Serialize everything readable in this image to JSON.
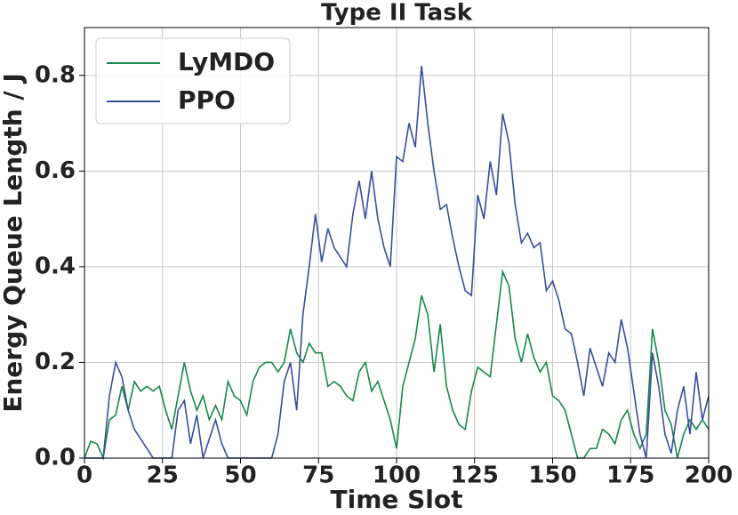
{
  "chart_data": {
    "type": "line",
    "title": "Type II Task",
    "xlabel": "Time Slot",
    "ylabel": "Energy Queue Length / J",
    "x": [
      0,
      2,
      4,
      6,
      8,
      10,
      12,
      14,
      16,
      18,
      20,
      22,
      24,
      26,
      28,
      30,
      32,
      34,
      36,
      38,
      40,
      42,
      44,
      46,
      48,
      50,
      52,
      54,
      56,
      58,
      60,
      62,
      64,
      66,
      68,
      70,
      72,
      74,
      76,
      78,
      80,
      82,
      84,
      86,
      88,
      90,
      92,
      94,
      96,
      98,
      100,
      102,
      104,
      106,
      108,
      110,
      112,
      114,
      116,
      118,
      120,
      122,
      124,
      126,
      128,
      130,
      132,
      134,
      136,
      138,
      140,
      142,
      144,
      146,
      148,
      150,
      152,
      154,
      156,
      158,
      160,
      162,
      164,
      166,
      168,
      170,
      172,
      174,
      176,
      178,
      180,
      182,
      184,
      186,
      188,
      190,
      192,
      194,
      196,
      198,
      200
    ],
    "series": [
      {
        "name": "LyMDO",
        "color": "#16884a",
        "values": [
          0,
          0.035,
          0.03,
          0,
          0.08,
          0.09,
          0.15,
          0.1,
          0.16,
          0.14,
          0.15,
          0.14,
          0.15,
          0.1,
          0.06,
          0.13,
          0.2,
          0.14,
          0.1,
          0.13,
          0.08,
          0.11,
          0.08,
          0.16,
          0.13,
          0.12,
          0.09,
          0.16,
          0.19,
          0.2,
          0.2,
          0.18,
          0.2,
          0.27,
          0.22,
          0.2,
          0.24,
          0.22,
          0.22,
          0.15,
          0.16,
          0.15,
          0.13,
          0.12,
          0.18,
          0.2,
          0.14,
          0.16,
          0.12,
          0.08,
          0.02,
          0.15,
          0.2,
          0.25,
          0.34,
          0.3,
          0.18,
          0.28,
          0.15,
          0.1,
          0.07,
          0.06,
          0.14,
          0.19,
          0.18,
          0.17,
          0.28,
          0.39,
          0.36,
          0.25,
          0.2,
          0.26,
          0.21,
          0.18,
          0.2,
          0.13,
          0.12,
          0.1,
          0.05,
          0,
          0,
          0.02,
          0.02,
          0.06,
          0.05,
          0.03,
          0.08,
          0.1,
          0.05,
          0.02,
          0.05,
          0.27,
          0.2,
          0.1,
          0.07,
          0,
          0.05,
          0.08,
          0.06,
          0.08,
          0.06
        ]
      },
      {
        "name": "PPO",
        "color": "#3a4d9c",
        "values": [
          0,
          0,
          0,
          0,
          0.13,
          0.2,
          0.17,
          0.1,
          0.06,
          0.04,
          0.02,
          0,
          0,
          0,
          0,
          0.1,
          0.12,
          0.03,
          0.09,
          0,
          0.04,
          0.08,
          0.03,
          0,
          0,
          0,
          0,
          0,
          0,
          0,
          0,
          0.05,
          0.16,
          0.2,
          0.1,
          0.3,
          0.4,
          0.51,
          0.41,
          0.48,
          0.44,
          0.42,
          0.4,
          0.51,
          0.58,
          0.5,
          0.6,
          0.5,
          0.44,
          0.4,
          0.63,
          0.62,
          0.7,
          0.65,
          0.82,
          0.7,
          0.6,
          0.52,
          0.53,
          0.46,
          0.4,
          0.35,
          0.34,
          0.55,
          0.5,
          0.62,
          0.55,
          0.72,
          0.66,
          0.53,
          0.45,
          0.47,
          0.44,
          0.45,
          0.35,
          0.37,
          0.33,
          0.27,
          0.26,
          0.2,
          0.13,
          0.23,
          0.19,
          0.15,
          0.22,
          0.2,
          0.29,
          0.23,
          0.14,
          0.05,
          0,
          0.22,
          0.15,
          0.05,
          0.01,
          0.1,
          0.15,
          0.05,
          0.18,
          0.08,
          0.13
        ]
      }
    ],
    "xlim": [
      0,
      200
    ],
    "xticks": [
      0,
      25,
      50,
      75,
      100,
      125,
      150,
      175,
      200
    ],
    "ylim": [
      0,
      0.9
    ],
    "yticks": [
      {
        "value": 0,
        "label": "0.0"
      },
      0.2,
      0.4,
      0.6,
      0.8
    ],
    "grid": true,
    "legend": "upper-left"
  }
}
